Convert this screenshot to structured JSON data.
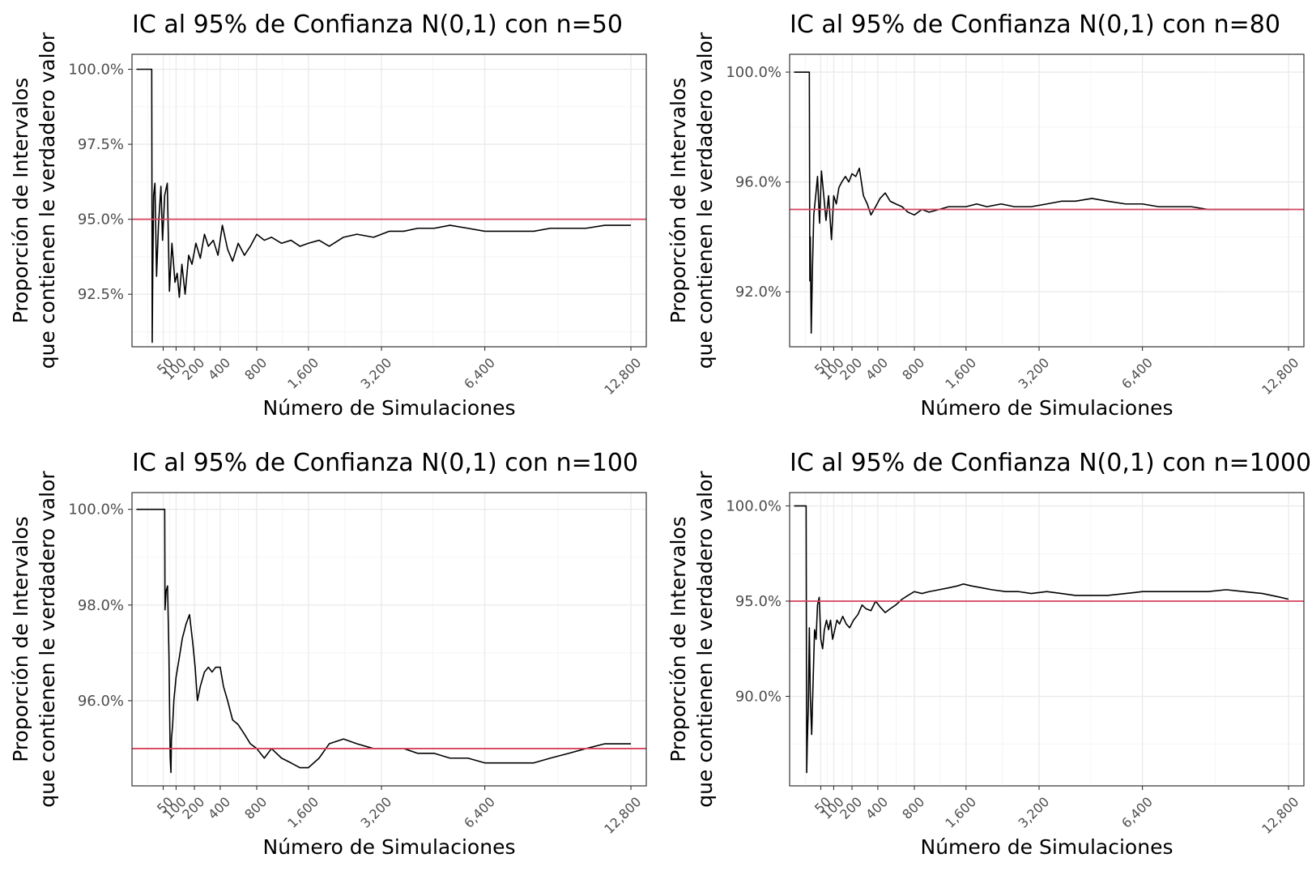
{
  "chart_data": [
    {
      "type": "line",
      "title": "IC al 95% de Confianza N(0,1) con n=50",
      "xlabel": "Número de Simulaciones",
      "ylabel": [
        "Proporción de Intervalos",
        "que contienen le verdadero valor"
      ],
      "x_scale": "sqrt",
      "xlim": [
        0,
        13600
      ],
      "ylim": [
        0.9075,
        1.005
      ],
      "x_ticks": [
        50,
        100,
        200,
        400,
        800,
        1600,
        3200,
        6400,
        12800
      ],
      "x_tick_labels": [
        "50",
        "100",
        "200",
        "400",
        "800",
        "1,600",
        "3,200",
        "6,400",
        "12,800"
      ],
      "y_ticks": [
        0.925,
        0.95,
        0.975,
        1.0
      ],
      "y_tick_labels": [
        "92.5%",
        "95.0%",
        "97.5%",
        "100.0%"
      ],
      "reference_line": 0.95,
      "grid": true,
      "series": [
        {
          "x": [
            1,
            20,
            21,
            22,
            24,
            27,
            31,
            36,
            43,
            48,
            55,
            64,
            72,
            82,
            95,
            105,
            115,
            128,
            145,
            165,
            185,
            210,
            240,
            270,
            300,
            340,
            380,
            420,
            470,
            520,
            580,
            650,
            720,
            800,
            900,
            1000,
            1150,
            1300,
            1450,
            1600,
            1800,
            2000,
            2300,
            2600,
            3000,
            3400,
            3800,
            4200,
            4700,
            5200,
            5800,
            6400,
            7000,
            7600,
            8300,
            9000,
            9800,
            10600,
            11500,
            12400,
            12800
          ],
          "y": [
            1.0,
            1.0,
            0.909,
            0.93,
            0.958,
            0.962,
            0.931,
            0.948,
            0.961,
            0.943,
            0.958,
            0.962,
            0.926,
            0.942,
            0.929,
            0.932,
            0.924,
            0.935,
            0.925,
            0.938,
            0.935,
            0.942,
            0.937,
            0.945,
            0.941,
            0.943,
            0.938,
            0.948,
            0.94,
            0.936,
            0.942,
            0.938,
            0.941,
            0.945,
            0.943,
            0.944,
            0.942,
            0.943,
            0.941,
            0.942,
            0.943,
            0.941,
            0.944,
            0.945,
            0.944,
            0.946,
            0.946,
            0.947,
            0.947,
            0.948,
            0.947,
            0.946,
            0.946,
            0.946,
            0.946,
            0.947,
            0.947,
            0.947,
            0.948,
            0.948,
            0.948
          ]
        }
      ]
    },
    {
      "type": "line",
      "title": "IC al 95% de Confianza N(0,1) con n=80",
      "xlabel": "Número de Simulaciones",
      "ylabel": [
        "Proporción de Intervalos",
        "que contienen le verdadero valor"
      ],
      "x_scale": "sqrt",
      "xlim": [
        0,
        13600
      ],
      "ylim": [
        0.9,
        1.0065
      ],
      "x_ticks": [
        50,
        100,
        200,
        400,
        800,
        1600,
        3200,
        6400,
        12800
      ],
      "x_tick_labels": [
        "50",
        "100",
        "200",
        "400",
        "800",
        "1,600",
        "3,200",
        "6,400",
        "12,800"
      ],
      "y_ticks": [
        0.92,
        0.96,
        1.0
      ],
      "y_tick_labels": [
        "92.0%",
        "96.0%",
        "100.0%"
      ],
      "reference_line": 0.95,
      "grid": true,
      "series": [
        {
          "x": [
            1,
            20,
            21,
            22,
            24,
            27,
            30,
            35,
            40,
            46,
            52,
            60,
            68,
            78,
            90,
            100,
            112,
            125,
            140,
            160,
            180,
            200,
            225,
            250,
            280,
            310,
            340,
            380,
            420,
            470,
            520,
            580,
            650,
            720,
            800,
            900,
            1000,
            1150,
            1300,
            1450,
            1600,
            1800,
            2000,
            2300,
            2600,
            3000,
            3400,
            3800,
            4200,
            4700,
            5200,
            5800,
            6400,
            7000,
            7600,
            8300,
            9000,
            9800,
            10600,
            11500,
            12400,
            12800
          ],
          "y": [
            1.0,
            1.0,
            0.924,
            0.94,
            0.905,
            0.93,
            0.948,
            0.955,
            0.962,
            0.945,
            0.964,
            0.955,
            0.946,
            0.955,
            0.939,
            0.955,
            0.952,
            0.958,
            0.96,
            0.962,
            0.96,
            0.963,
            0.962,
            0.965,
            0.955,
            0.952,
            0.948,
            0.951,
            0.954,
            0.956,
            0.953,
            0.952,
            0.951,
            0.949,
            0.948,
            0.95,
            0.949,
            0.95,
            0.951,
            0.951,
            0.951,
            0.952,
            0.951,
            0.952,
            0.951,
            0.951,
            0.952,
            0.953,
            0.953,
            0.954,
            0.953,
            0.952,
            0.952,
            0.951,
            0.951,
            0.951,
            0.95,
            0.95,
            0.95,
            0.95,
            0.95,
            0.95
          ]
        }
      ]
    },
    {
      "type": "line",
      "title": "IC al 95% de Confianza N(0,1) con n=100",
      "xlabel": "Número de Simulaciones",
      "ylabel": [
        "Proporción de Intervalos",
        "que contienen le verdadero valor"
      ],
      "x_scale": "sqrt",
      "xlim": [
        0,
        13600
      ],
      "ylim": [
        0.9422,
        1.0035
      ],
      "x_ticks": [
        50,
        100,
        200,
        400,
        800,
        1600,
        3200,
        6400,
        12800
      ],
      "x_tick_labels": [
        "50",
        "100",
        "200",
        "400",
        "800",
        "1,600",
        "3,200",
        "6,400",
        "12,800"
      ],
      "y_ticks": [
        0.96,
        0.98,
        1.0
      ],
      "y_tick_labels": [
        "96.0%",
        "98.0%",
        "100.0%"
      ],
      "reference_line": 0.95,
      "grid": true,
      "series": [
        {
          "x": [
            1,
            55,
            56,
            60,
            65,
            70,
            75,
            78,
            80,
            85,
            90,
            100,
            115,
            130,
            150,
            170,
            190,
            205,
            220,
            240,
            270,
            300,
            330,
            360,
            400,
            430,
            470,
            520,
            580,
            650,
            720,
            800,
            900,
            1000,
            1150,
            1300,
            1450,
            1600,
            1800,
            2000,
            2300,
            2600,
            3000,
            3400,
            3800,
            4200,
            4700,
            5200,
            5800,
            6400,
            7000,
            7600,
            8300,
            9000,
            9800,
            10600,
            11500,
            12400,
            12800
          ],
          "y": [
            1.0,
            1.0,
            0.979,
            0.983,
            0.984,
            0.97,
            0.948,
            0.945,
            0.952,
            0.955,
            0.96,
            0.965,
            0.969,
            0.973,
            0.976,
            0.978,
            0.972,
            0.967,
            0.96,
            0.963,
            0.966,
            0.967,
            0.966,
            0.967,
            0.967,
            0.963,
            0.96,
            0.956,
            0.955,
            0.953,
            0.951,
            0.95,
            0.948,
            0.95,
            0.948,
            0.947,
            0.946,
            0.946,
            0.948,
            0.951,
            0.952,
            0.951,
            0.95,
            0.95,
            0.95,
            0.949,
            0.949,
            0.948,
            0.948,
            0.947,
            0.947,
            0.947,
            0.947,
            0.948,
            0.949,
            0.95,
            0.951,
            0.951,
            0.951
          ]
        }
      ]
    },
    {
      "type": "line",
      "title": "IC al 95% de Confianza N(0,1) con n=1000",
      "xlabel": "Número de Simulaciones",
      "ylabel": [
        "Proporción de Intervalos",
        "que contienen le verdadero valor"
      ],
      "x_scale": "sqrt",
      "xlim": [
        0,
        13600
      ],
      "ylim": [
        0.853,
        1.007
      ],
      "x_ticks": [
        50,
        100,
        200,
        400,
        800,
        1600,
        3200,
        6400,
        12800
      ],
      "x_tick_labels": [
        "50",
        "100",
        "200",
        "400",
        "800",
        "1,600",
        "3,200",
        "6,400",
        "12,800"
      ],
      "y_ticks": [
        0.9,
        0.95,
        1.0
      ],
      "y_tick_labels": [
        "90.0%",
        "95.0%",
        "100.0%"
      ],
      "reference_line": 0.95,
      "grid": true,
      "series": [
        {
          "x": [
            1,
            14,
            15,
            16,
            18,
            20,
            22,
            25,
            28,
            32,
            36,
            40,
            45,
            50,
            56,
            62,
            70,
            78,
            86,
            95,
            105,
            115,
            128,
            145,
            165,
            185,
            210,
            240,
            270,
            300,
            340,
            380,
            420,
            470,
            520,
            580,
            650,
            720,
            800,
            900,
            1000,
            1150,
            1300,
            1450,
            1550,
            1700,
            1900,
            2100,
            2400,
            2700,
            3000,
            3400,
            3800,
            4200,
            4700,
            5200,
            5800,
            6400,
            7000,
            7600,
            8300,
            9000,
            9800,
            10600,
            11500,
            12400,
            12800
          ],
          "y": [
            1.0,
            1.0,
            0.86,
            0.875,
            0.895,
            0.936,
            0.9,
            0.88,
            0.905,
            0.935,
            0.93,
            0.948,
            0.952,
            0.93,
            0.925,
            0.935,
            0.94,
            0.935,
            0.94,
            0.93,
            0.935,
            0.94,
            0.938,
            0.942,
            0.938,
            0.936,
            0.94,
            0.943,
            0.948,
            0.946,
            0.945,
            0.95,
            0.947,
            0.944,
            0.946,
            0.948,
            0.951,
            0.953,
            0.955,
            0.954,
            0.955,
            0.956,
            0.957,
            0.958,
            0.959,
            0.958,
            0.957,
            0.956,
            0.955,
            0.955,
            0.954,
            0.955,
            0.954,
            0.953,
            0.953,
            0.953,
            0.954,
            0.955,
            0.955,
            0.955,
            0.955,
            0.955,
            0.956,
            0.955,
            0.954,
            0.952,
            0.951
          ]
        }
      ]
    }
  ]
}
